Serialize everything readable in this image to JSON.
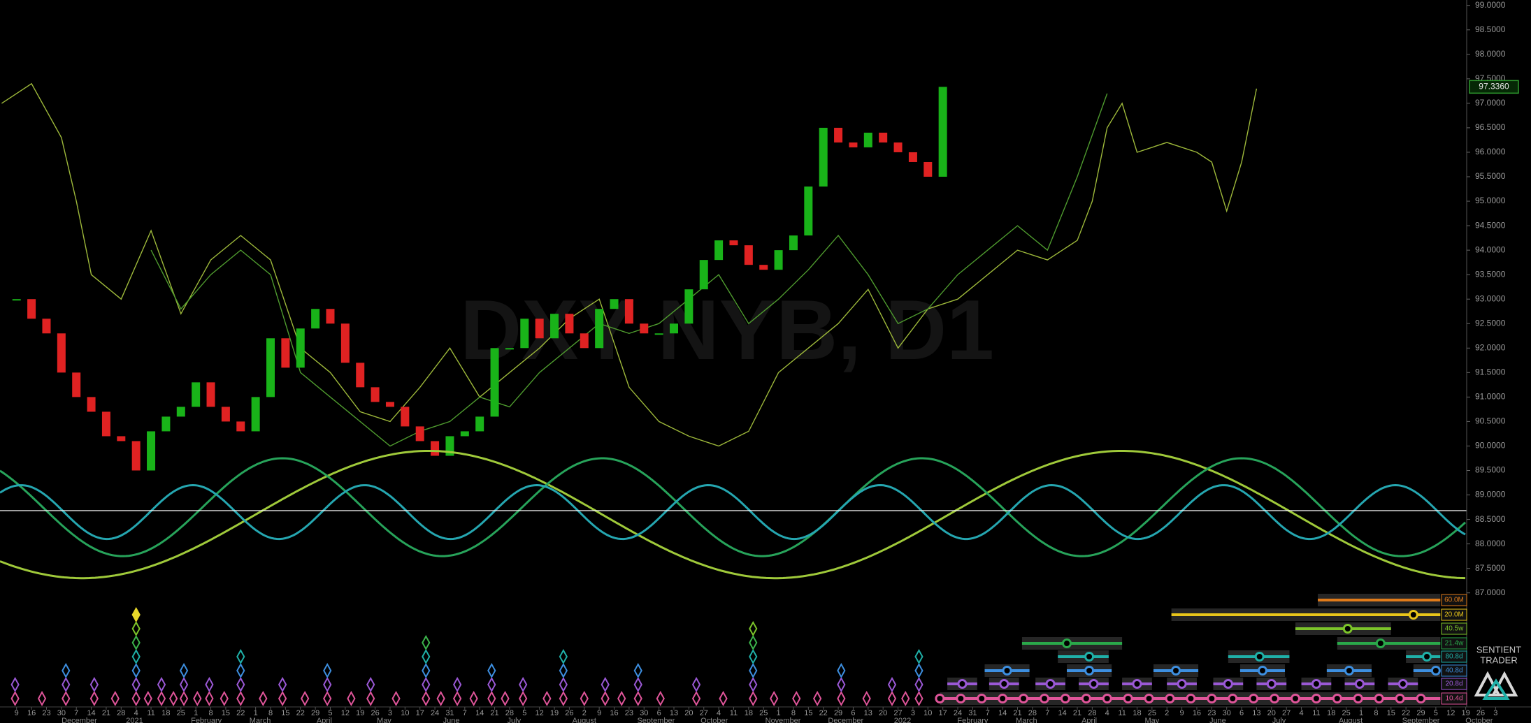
{
  "chart_data": {
    "type": "candlestick",
    "watermark": "DXY NYB, D1",
    "brand": [
      "SENTIENT",
      "TRADER"
    ],
    "xlim": [
      -1.11,
      101.37
    ],
    "ylim": [
      84.67,
      99.11
    ],
    "up_color": "#19b319",
    "down_color": "#e02222",
    "x": [
      0,
      1,
      2,
      3,
      4,
      5,
      6,
      7,
      8,
      9,
      10,
      11,
      12,
      13,
      14,
      15,
      16,
      17,
      18,
      19,
      20,
      21,
      22,
      23,
      24,
      25,
      26,
      27,
      28,
      29,
      30,
      31,
      32,
      33,
      34,
      35,
      36,
      37,
      38,
      39,
      40,
      41,
      42,
      43,
      44,
      45,
      46,
      47,
      48,
      49,
      50,
      51,
      52,
      53,
      54,
      55,
      56,
      57,
      58,
      59,
      60,
      61,
      62
    ],
    "close": [
      93.0,
      92.6,
      92.3,
      91.5,
      91.0,
      90.7,
      90.2,
      90.1,
      89.5,
      90.3,
      90.6,
      90.8,
      91.3,
      90.8,
      90.5,
      90.3,
      91.0,
      92.2,
      91.6,
      92.4,
      92.8,
      92.5,
      91.7,
      91.2,
      90.9,
      90.8,
      90.4,
      90.1,
      89.8,
      90.2,
      90.3,
      90.6,
      92.0,
      92.0,
      92.6,
      92.2,
      92.7,
      92.3,
      92.0,
      92.8,
      93.0,
      92.5,
      92.3,
      92.3,
      92.5,
      93.2,
      93.8,
      94.2,
      94.1,
      93.7,
      93.6,
      94.0,
      94.3,
      95.3,
      96.5,
      96.2,
      96.1,
      96.4,
      96.2,
      96.0,
      95.8,
      95.5,
      97.336
    ],
    "last_price": {
      "value": 97.336,
      "label": "97.3360",
      "color": "#2e9a2e"
    },
    "hline": {
      "value": 88.68,
      "color": "#ffffff"
    },
    "overlays": [
      {
        "color": "#9db83a",
        "x": [
          -1,
          1,
          3,
          4,
          5,
          7,
          9,
          11,
          13,
          15,
          17,
          19,
          21,
          23,
          25,
          27,
          29,
          31,
          33,
          35,
          37,
          39,
          41,
          43,
          45,
          47,
          49,
          51,
          53,
          55,
          57,
          59,
          61,
          63,
          65,
          67,
          69,
          71,
          72,
          73,
          74,
          75,
          77,
          79,
          80,
          81,
          82,
          83
        ],
        "values": [
          97.0,
          97.4,
          96.3,
          95.0,
          93.5,
          93.0,
          94.4,
          92.7,
          93.8,
          94.3,
          93.8,
          92.0,
          91.5,
          90.7,
          90.5,
          91.2,
          92.0,
          91.0,
          91.5,
          92.0,
          92.6,
          93.0,
          91.2,
          90.5,
          90.2,
          90.0,
          90.3,
          91.5,
          92.0,
          92.5,
          93.2,
          92.0,
          92.8,
          93.0,
          93.5,
          94.0,
          93.8,
          94.2,
          95.0,
          96.5,
          97.0,
          96.0,
          96.2,
          96.0,
          95.8,
          94.8,
          95.8,
          97.3
        ]
      },
      {
        "color": "#4e9a2e",
        "x": [
          9,
          11,
          13,
          15,
          17,
          19,
          21,
          23,
          25,
          27,
          29,
          31,
          33,
          35,
          37,
          39,
          41,
          43,
          45,
          47,
          49,
          51,
          53,
          55,
          57,
          59,
          61,
          63,
          65,
          67,
          69,
          71,
          73
        ],
        "values": [
          94.0,
          92.8,
          93.5,
          94.0,
          93.5,
          91.5,
          91.0,
          90.5,
          90.0,
          90.3,
          90.5,
          91.0,
          90.8,
          91.5,
          92.0,
          92.5,
          92.3,
          92.5,
          93.0,
          93.5,
          92.5,
          93.0,
          93.6,
          94.3,
          93.5,
          92.5,
          92.8,
          93.5,
          94.0,
          94.5,
          94.0,
          95.5,
          97.2
        ]
      }
    ],
    "cycles": [
      {
        "color": "#9fc93a",
        "period": 46.4,
        "peak": 27.6,
        "center": 88.6,
        "amplitude": 1.3
      },
      {
        "color": "#27a35a",
        "period": 21.4,
        "peak": 17.8,
        "center": 88.75,
        "amplitude": 1.0
      },
      {
        "color": "#25a6b0",
        "period": 11.5,
        "peak": 11.8,
        "center": 88.65,
        "amplitude": 0.55
      }
    ],
    "cycle_rows": [
      {
        "label": "60.0M",
        "color": "#e07b1a",
        "spans": [
          [
            87.1,
            95.3
          ]
        ]
      },
      {
        "label": "20.0M",
        "color": "#e8c51a",
        "spans": [
          [
            77.3,
            95.3
          ]
        ],
        "circles": [
          93.5
        ]
      },
      {
        "label": "40.5w",
        "color": "#7cc42a",
        "spans": [
          [
            85.6,
            92.0
          ]
        ],
        "circles": [
          89.1
        ]
      },
      {
        "label": "21.4w",
        "color": "#2aa84a",
        "spans": [
          [
            67.3,
            74.0
          ],
          [
            88.4,
            95.3
          ]
        ],
        "circles": [
          70.3,
          91.3
        ]
      },
      {
        "label": "80.8d",
        "color": "#1fb0a8",
        "spans": [
          [
            69.7,
            73.1
          ],
          [
            81.1,
            85.2
          ],
          [
            93.0,
            95.3
          ]
        ],
        "circles": [
          71.8,
          83.2,
          94.4
        ]
      },
      {
        "label": "40.8d",
        "color": "#3d8fe0",
        "spans": [
          [
            64.8,
            67.8
          ],
          [
            70.3,
            73.3
          ],
          [
            76.1,
            79.1
          ],
          [
            81.9,
            84.9
          ],
          [
            87.7,
            90.7
          ],
          [
            93.5,
            95.3
          ]
        ],
        "circles": [
          66.3,
          71.8,
          77.6,
          83.4,
          89.2,
          95.0
        ]
      },
      {
        "label": "20.8d",
        "color": "#9b59d6",
        "spans": [
          [
            62.3,
            64.3
          ],
          [
            65.1,
            67.1
          ],
          [
            68.2,
            70.2
          ],
          [
            71.1,
            73.1
          ],
          [
            74.0,
            76.0
          ],
          [
            77.0,
            79.0
          ],
          [
            80.1,
            82.1
          ],
          [
            83.0,
            85.0
          ],
          [
            86.0,
            88.0
          ],
          [
            88.9,
            90.9
          ],
          [
            91.8,
            93.8
          ]
        ],
        "circles": [
          63.3,
          66.1,
          69.2,
          72.1,
          75.0,
          78.0,
          81.1,
          84.0,
          87.0,
          89.9,
          92.8
        ]
      },
      {
        "label": "10.4d",
        "color": "#e0559a",
        "spans": [
          [
            61.8,
            95.3
          ]
        ],
        "circles": [
          61.8,
          63.2,
          64.6,
          66.0,
          67.4,
          68.8,
          70.2,
          71.6,
          73.0,
          74.4,
          75.8,
          77.2,
          78.6,
          80.0,
          81.4,
          82.8,
          84.2,
          85.6,
          87.0,
          88.4,
          89.8,
          91.2,
          92.6,
          94.0
        ]
      }
    ],
    "diamonds": {
      "colors": [
        "#e0559a",
        "#9b59d6",
        "#3d8fe0",
        "#1fb0a8",
        "#3cb44b",
        "#7cc42a",
        "#e8d82a"
      ],
      "weeks": [
        -0.1,
        1.7,
        3.3,
        5.2,
        6.6,
        8.0,
        8.8,
        9.7,
        10.5,
        11.2,
        12.1,
        12.9,
        13.9,
        15.0,
        16.5,
        17.8,
        19.3,
        20.8,
        22.4,
        23.7,
        25.4,
        27.4,
        28.4,
        29.5,
        30.6,
        31.8,
        32.7,
        33.9,
        35.5,
        36.6,
        38.0,
        39.4,
        40.5,
        41.6,
        43.1,
        45.5,
        47.3,
        49.3,
        50.7,
        52.2,
        53.6,
        55.2,
        56.9,
        58.6,
        59.5,
        60.4
      ],
      "levels": [
        2,
        1,
        3,
        2,
        1,
        7,
        1,
        2,
        1,
        3,
        1,
        2,
        1,
        4,
        1,
        2,
        1,
        3,
        1,
        2,
        1,
        5,
        1,
        2,
        1,
        3,
        1,
        2,
        1,
        4,
        1,
        2,
        1,
        3,
        1,
        2,
        1,
        6,
        1,
        1,
        1,
        3,
        1,
        2,
        1,
        4
      ]
    },
    "yticks": [
      {
        "value": 99,
        "label": "99.0000"
      },
      {
        "value": 98.5,
        "label": "98.5000"
      },
      {
        "value": 98,
        "label": "98.0000"
      },
      {
        "value": 97.5,
        "label": "97.5000"
      },
      {
        "value": 97,
        "label": "97.0000"
      },
      {
        "value": 96.5,
        "label": "96.5000"
      },
      {
        "value": 96,
        "label": "96.0000"
      },
      {
        "value": 95.5,
        "label": "95.5000"
      },
      {
        "value": 95,
        "label": "95.0000"
      },
      {
        "value": 94.5,
        "label": "94.5000"
      },
      {
        "value": 94,
        "label": "94.0000"
      },
      {
        "value": 93.5,
        "label": "93.5000"
      },
      {
        "value": 93,
        "label": "93.0000"
      },
      {
        "value": 92.5,
        "label": "92.5000"
      },
      {
        "value": 92,
        "label": "92.0000"
      },
      {
        "value": 91.5,
        "label": "91.5000"
      },
      {
        "value": 91,
        "label": "91.0000"
      },
      {
        "value": 90.5,
        "label": "90.5000"
      },
      {
        "value": 90,
        "label": "90.0000"
      },
      {
        "value": 89.5,
        "label": "89.5000"
      },
      {
        "value": 89,
        "label": "89.0000"
      },
      {
        "value": 88.5,
        "label": "88.5000"
      },
      {
        "value": 88,
        "label": "88.0000"
      },
      {
        "value": 87.5,
        "label": "87.5000"
      },
      {
        "value": 87,
        "label": "87.0000"
      }
    ],
    "xticks": [
      {
        "value": 0,
        "label": "9"
      },
      {
        "value": 1,
        "label": "16"
      },
      {
        "value": 2,
        "label": "23"
      },
      {
        "value": 3,
        "label": "30"
      },
      {
        "value": 4,
        "label": "7"
      },
      {
        "value": 5,
        "label": "14"
      },
      {
        "value": 6,
        "label": "21"
      },
      {
        "value": 7,
        "label": "28"
      },
      {
        "value": 8,
        "label": "4"
      },
      {
        "value": 9,
        "label": "11"
      },
      {
        "value": 10,
        "label": "18"
      },
      {
        "value": 11,
        "label": "25"
      },
      {
        "value": 12,
        "label": "1"
      },
      {
        "value": 13,
        "label": "8"
      },
      {
        "value": 14,
        "label": "15"
      },
      {
        "value": 15,
        "label": "22"
      },
      {
        "value": 16,
        "label": "1"
      },
      {
        "value": 17,
        "label": "8"
      },
      {
        "value": 18,
        "label": "15"
      },
      {
        "value": 19,
        "label": "22"
      },
      {
        "value": 20,
        "label": "29"
      },
      {
        "value": 21,
        "label": "5"
      },
      {
        "value": 22,
        "label": "12"
      },
      {
        "value": 23,
        "label": "19"
      },
      {
        "value": 24,
        "label": "26"
      },
      {
        "value": 25,
        "label": "3"
      },
      {
        "value": 26,
        "label": "10"
      },
      {
        "value": 27,
        "label": "17"
      },
      {
        "value": 28,
        "label": "24"
      },
      {
        "value": 29,
        "label": "31"
      },
      {
        "value": 30,
        "label": "7"
      },
      {
        "value": 31,
        "label": "14"
      },
      {
        "value": 32,
        "label": "21"
      },
      {
        "value": 33,
        "label": "28"
      },
      {
        "value": 34,
        "label": "5"
      },
      {
        "value": 35,
        "label": "12"
      },
      {
        "value": 36,
        "label": "19"
      },
      {
        "value": 37,
        "label": "26"
      },
      {
        "value": 38,
        "label": "2"
      },
      {
        "value": 39,
        "label": "9"
      },
      {
        "value": 40,
        "label": "16"
      },
      {
        "value": 41,
        "label": "23"
      },
      {
        "value": 42,
        "label": "30"
      },
      {
        "value": 43,
        "label": "6"
      },
      {
        "value": 44,
        "label": "13"
      },
      {
        "value": 45,
        "label": "20"
      },
      {
        "value": 46,
        "label": "27"
      },
      {
        "value": 47,
        "label": "4"
      },
      {
        "value": 48,
        "label": "11"
      },
      {
        "value": 49,
        "label": "18"
      },
      {
        "value": 50,
        "label": "25"
      },
      {
        "value": 51,
        "label": "1"
      },
      {
        "value": 52,
        "label": "8"
      },
      {
        "value": 53,
        "label": "15"
      },
      {
        "value": 54,
        "label": "22"
      },
      {
        "value": 55,
        "label": "29"
      },
      {
        "value": 56,
        "label": "6"
      },
      {
        "value": 57,
        "label": "13"
      },
      {
        "value": 58,
        "label": "20"
      },
      {
        "value": 59,
        "label": "27"
      },
      {
        "value": 60,
        "label": "3"
      },
      {
        "value": 61,
        "label": "10"
      },
      {
        "value": 62,
        "label": "17"
      },
      {
        "value": 63,
        "label": "24"
      },
      {
        "value": 64,
        "label": "31"
      },
      {
        "value": 65,
        "label": "7"
      },
      {
        "value": 66,
        "label": "14"
      },
      {
        "value": 67,
        "label": "21"
      },
      {
        "value": 68,
        "label": "28"
      },
      {
        "value": 69,
        "label": "7"
      },
      {
        "value": 70,
        "label": "14"
      },
      {
        "value": 71,
        "label": "21"
      },
      {
        "value": 72,
        "label": "28"
      },
      {
        "value": 73,
        "label": "4"
      },
      {
        "value": 74,
        "label": "11"
      },
      {
        "value": 75,
        "label": "18"
      },
      {
        "value": 76,
        "label": "25"
      },
      {
        "value": 77,
        "label": "2"
      },
      {
        "value": 78,
        "label": "9"
      },
      {
        "value": 79,
        "label": "16"
      },
      {
        "value": 80,
        "label": "23"
      },
      {
        "value": 81,
        "label": "30"
      },
      {
        "value": 82,
        "label": "6"
      },
      {
        "value": 83,
        "label": "13"
      },
      {
        "value": 84,
        "label": "20"
      },
      {
        "value": 85,
        "label": "27"
      },
      {
        "value": 86,
        "label": "4"
      },
      {
        "value": 87,
        "label": "11"
      },
      {
        "value": 88,
        "label": "18"
      },
      {
        "value": 89,
        "label": "25"
      },
      {
        "value": 90,
        "label": "1"
      },
      {
        "value": 91,
        "label": "8"
      },
      {
        "value": 92,
        "label": "15"
      },
      {
        "value": 93,
        "label": "22"
      },
      {
        "value": 94,
        "label": "29"
      },
      {
        "value": 95,
        "label": "5"
      },
      {
        "value": 96,
        "label": "12"
      },
      {
        "value": 97,
        "label": "19"
      },
      {
        "value": 98,
        "label": "26"
      },
      {
        "value": 99,
        "label": "3"
      }
    ],
    "month_ticks": [
      {
        "value": 4.2,
        "label": "December"
      },
      {
        "value": 7.9,
        "label": "2021"
      },
      {
        "value": 12.7,
        "label": "February"
      },
      {
        "value": 16.3,
        "label": "March"
      },
      {
        "value": 20.6,
        "label": "April"
      },
      {
        "value": 24.6,
        "label": "May"
      },
      {
        "value": 29.1,
        "label": "June"
      },
      {
        "value": 33.3,
        "label": "July"
      },
      {
        "value": 38.0,
        "label": "August"
      },
      {
        "value": 42.8,
        "label": "September"
      },
      {
        "value": 46.7,
        "label": "October"
      },
      {
        "value": 51.3,
        "label": "November"
      },
      {
        "value": 55.5,
        "label": "December"
      },
      {
        "value": 59.3,
        "label": "2022"
      },
      {
        "value": 64.0,
        "label": "February"
      },
      {
        "value": 67.6,
        "label": "March"
      },
      {
        "value": 71.8,
        "label": "April"
      },
      {
        "value": 76.0,
        "label": "May"
      },
      {
        "value": 80.4,
        "label": "June"
      },
      {
        "value": 84.5,
        "label": "July"
      },
      {
        "value": 89.3,
        "label": "August"
      },
      {
        "value": 94.0,
        "label": "September"
      },
      {
        "value": 97.9,
        "label": "October"
      }
    ]
  }
}
